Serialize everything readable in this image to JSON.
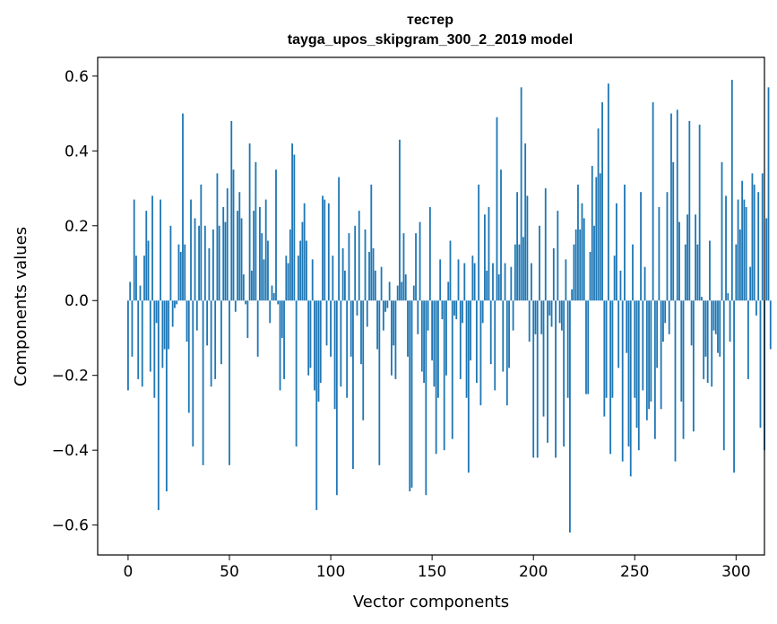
{
  "chart_data": {
    "type": "bar",
    "title": "тестер",
    "subtitle": "tayga_upos_skipgram_300_2_2019 model",
    "xlabel": "Vector components",
    "ylabel": "Components values",
    "xlim": [
      -15,
      314
    ],
    "ylim": [
      -0.68,
      0.65
    ],
    "xticks": [
      0,
      50,
      100,
      150,
      200,
      250,
      300
    ],
    "yticks": [
      -0.6,
      -0.4,
      -0.2,
      0.0,
      0.2,
      0.4,
      0.6
    ],
    "xtick_labels": [
      "0",
      "50",
      "100",
      "150",
      "200",
      "250",
      "300"
    ],
    "ytick_labels": [
      "−0.6",
      "−0.4",
      "−0.2",
      "0.0",
      "0.2",
      "0.4",
      "0.6"
    ],
    "bar_color": "#1f77b4",
    "values": [
      -0.24,
      0.05,
      -0.15,
      0.27,
      0.12,
      -0.21,
      0.04,
      -0.23,
      0.12,
      0.24,
      0.16,
      -0.19,
      0.28,
      -0.26,
      -0.06,
      -0.56,
      0.27,
      -0.18,
      -0.13,
      -0.51,
      -0.13,
      0.2,
      -0.07,
      -0.02,
      -0.01,
      0.15,
      0.13,
      0.5,
      0.15,
      -0.11,
      -0.3,
      0.27,
      -0.39,
      0.22,
      -0.08,
      0.2,
      0.31,
      -0.44,
      0.2,
      -0.12,
      0.14,
      -0.23,
      0.19,
      -0.21,
      0.34,
      0.2,
      -0.17,
      0.25,
      0.21,
      0.3,
      -0.44,
      0.48,
      0.35,
      -0.03,
      0.24,
      0.29,
      0.22,
      0.07,
      -0.01,
      -0.1,
      0.42,
      0.08,
      0.24,
      0.37,
      -0.15,
      0.25,
      0.18,
      0.11,
      0.27,
      0.16,
      -0.06,
      0.04,
      0.02,
      0.35,
      -0.01,
      -0.24,
      -0.1,
      -0.21,
      0.12,
      0.1,
      0.19,
      0.42,
      0.39,
      -0.39,
      0.12,
      0.16,
      0.21,
      0.26,
      0.16,
      -0.2,
      -0.18,
      0.11,
      -0.24,
      -0.56,
      -0.27,
      -0.22,
      0.28,
      0.27,
      -0.12,
      0.26,
      -0.15,
      0.12,
      -0.29,
      -0.52,
      0.33,
      -0.23,
      0.14,
      0.08,
      -0.26,
      0.18,
      -0.15,
      -0.45,
      0.2,
      -0.04,
      0.24,
      -0.17,
      -0.32,
      0.19,
      -0.07,
      0.13,
      0.31,
      0.14,
      0.08,
      -0.13,
      -0.44,
      0.09,
      -0.08,
      -0.03,
      -0.02,
      0.05,
      -0.2,
      -0.12,
      -0.21,
      0.04,
      0.43,
      0.05,
      0.18,
      0.07,
      -0.15,
      -0.51,
      -0.5,
      0.04,
      0.18,
      -0.09,
      0.21,
      -0.19,
      -0.22,
      -0.52,
      -0.08,
      0.25,
      -0.16,
      -0.23,
      -0.41,
      -0.26,
      0.11,
      -0.05,
      -0.4,
      -0.2,
      0.05,
      0.16,
      -0.37,
      -0.04,
      -0.05,
      0.11,
      -0.21,
      -0.06,
      0.1,
      -0.26,
      -0.46,
      -0.16,
      0.12,
      0.1,
      -0.22,
      0.31,
      -0.28,
      -0.06,
      0.23,
      0.08,
      0.25,
      -0.17,
      0.1,
      -0.24,
      0.49,
      0.07,
      0.35,
      -0.19,
      0.1,
      -0.28,
      -0.18,
      0.09,
      -0.08,
      0.15,
      0.29,
      0.15,
      0.57,
      0.17,
      0.42,
      0.28,
      -0.11,
      0.1,
      -0.42,
      -0.09,
      -0.42,
      0.2,
      -0.09,
      -0.31,
      0.3,
      -0.38,
      -0.04,
      -0.07,
      0.14,
      -0.42,
      0.24,
      -0.06,
      -0.08,
      -0.39,
      0.11,
      -0.26,
      -0.62,
      0.03,
      0.15,
      0.19,
      0.31,
      0.19,
      0.26,
      0.22,
      -0.25,
      -0.25,
      0.13,
      0.36,
      0.2,
      0.33,
      0.46,
      0.34,
      0.53,
      -0.31,
      -0.26,
      0.58,
      -0.41,
      -0.26,
      0.12,
      0.26,
      -0.18,
      0.08,
      -0.43,
      0.31,
      -0.14,
      -0.39,
      -0.47,
      0.15,
      -0.26,
      -0.34,
      -0.4,
      0.29,
      -0.24,
      0.09,
      -0.32,
      -0.29,
      -0.27,
      0.53,
      -0.37,
      -0.18,
      0.25,
      -0.29,
      -0.11,
      -0.06,
      0.29,
      -0.09,
      0.5,
      0.37,
      -0.43,
      0.51,
      0.21,
      -0.27,
      -0.37,
      0.15,
      0.23,
      0.48,
      -0.12,
      -0.35,
      0.23,
      0.15,
      0.47,
      0.01,
      -0.21,
      -0.15,
      -0.22,
      0.16,
      -0.23,
      -0.08,
      -0.09,
      -0.14,
      -0.15,
      0.37,
      -0.4,
      0.28,
      0.02,
      -0.11,
      0.59,
      -0.46,
      0.15,
      0.27,
      0.19,
      0.32,
      0.27,
      0.25,
      -0.21,
      0.09,
      0.34,
      0.31,
      -0.04,
      0.29,
      -0.34,
      0.34,
      -0.4,
      0.22,
      0.57,
      -0.13
    ]
  }
}
